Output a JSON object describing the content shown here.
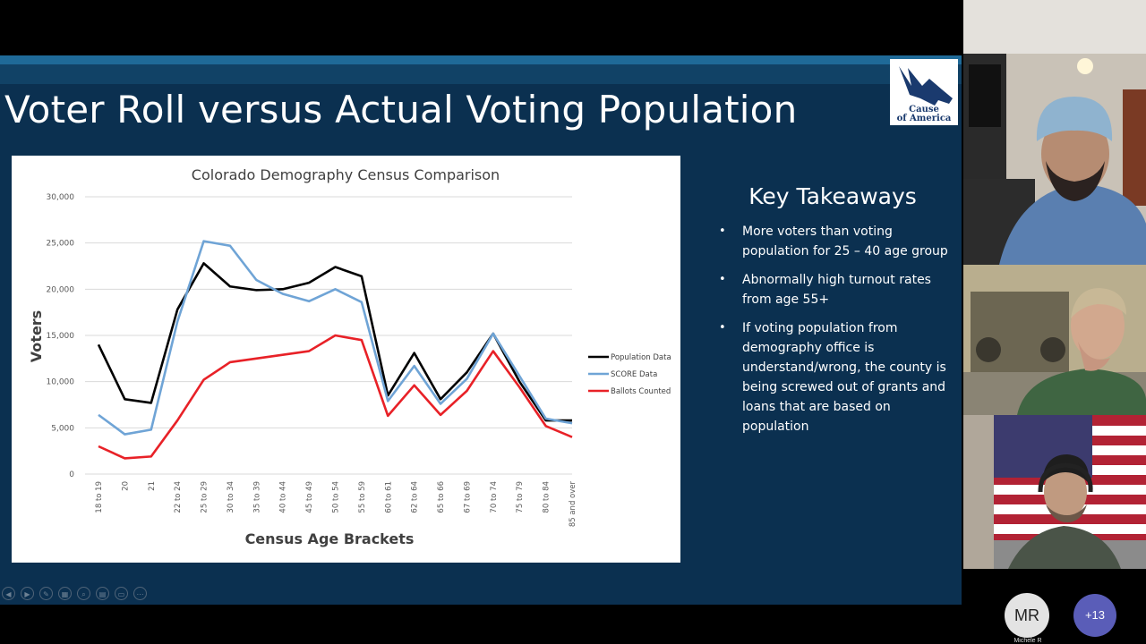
{
  "slide": {
    "title": "Voter Roll versus Actual Voting Population",
    "logo_text_line1": "Cause",
    "logo_text_line2": "of America",
    "takeaways": {
      "title": "Key Takeaways",
      "items": [
        "More voters than voting population for 25 – 40 age group",
        "Abnormally high turnout rates from age 55+",
        "If voting population from demography office is understand/wrong, the county is being screwed out of grants and loans that are based on population"
      ]
    }
  },
  "chart_data": {
    "type": "line",
    "title": "Colorado Demography Census Comparison",
    "xlabel": "Census Age Brackets",
    "ylabel": "Voters",
    "categories": [
      "18 to 19",
      "20",
      "21",
      "22 to 24",
      "25 to 29",
      "30 to 34",
      "35 to 39",
      "40 to 44",
      "45 to 49",
      "50 to 54",
      "55 to 59",
      "60 to 61",
      "62 to 64",
      "65 to 66",
      "67 to 69",
      "70 to 74",
      "75 to 79",
      "80 to 84",
      "85 and over"
    ],
    "ylim": [
      0,
      30000
    ],
    "yticks": [
      0,
      5000,
      10000,
      15000,
      20000,
      25000,
      30000
    ],
    "ytick_labels": [
      "0",
      "5,000",
      "10,000",
      "15,000",
      "20,000",
      "25,000",
      "30,000"
    ],
    "grid": true,
    "legend_position": "right",
    "series": [
      {
        "name": "Population Data",
        "color": "#000000",
        "values": [
          14000,
          8100,
          7700,
          17800,
          22800,
          20300,
          19900,
          20000,
          20700,
          22400,
          21400,
          8500,
          13100,
          8100,
          11000,
          15200,
          10000,
          5800,
          5800
        ]
      },
      {
        "name": "SCORE Data",
        "color": "#6fa4d6",
        "values": [
          6400,
          4300,
          4800,
          16500,
          25200,
          24700,
          21000,
          19500,
          18700,
          20000,
          18600,
          7900,
          11700,
          7600,
          10300,
          15200,
          10600,
          6000,
          5500
        ]
      },
      {
        "name": "Ballots Counted",
        "color": "#e82127",
        "values": [
          3000,
          1700,
          1900,
          5800,
          10200,
          12100,
          12500,
          12900,
          13300,
          15000,
          14500,
          6300,
          9600,
          6400,
          9000,
          13300,
          9400,
          5200,
          4000
        ]
      }
    ]
  },
  "toolbar": {
    "icons": [
      "previous-icon",
      "play-icon",
      "pen-icon",
      "slides-icon",
      "zoom-icon",
      "subtitles-icon",
      "monitor-icon",
      "more-icon"
    ]
  },
  "meeting": {
    "participant_initials": "MR",
    "participant_name": "Michele R",
    "more_participants": "+13"
  }
}
